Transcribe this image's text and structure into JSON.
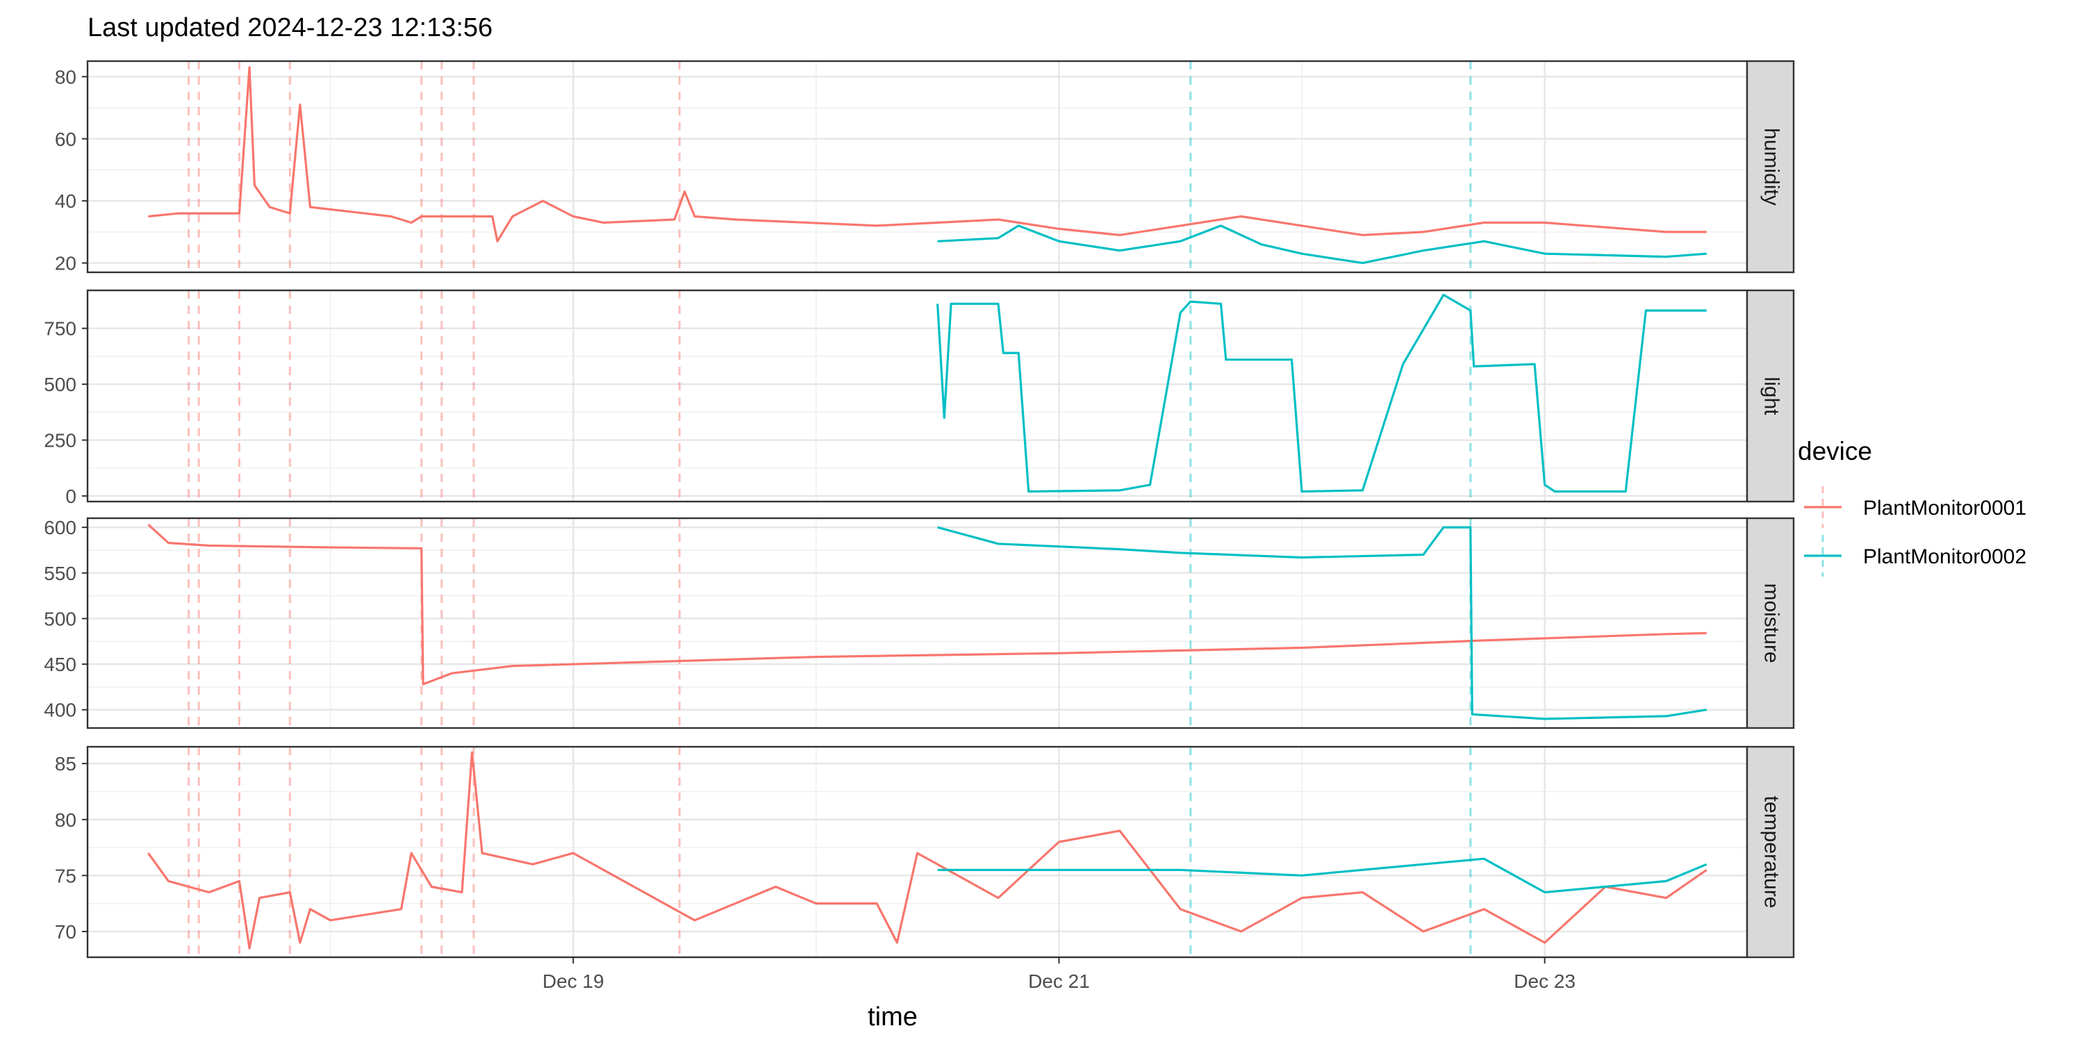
{
  "chart_data": {
    "type": "line",
    "title": "Last updated 2024-12-23 12:13:56",
    "xlabel": "time",
    "x_ticks": [
      "Dec 19",
      "Dec 21",
      "Dec 23"
    ],
    "x_range": [
      "2024-12-17 00:00",
      "2024-12-23 20:00"
    ],
    "legend": {
      "title": "device",
      "position": "right",
      "entries": [
        {
          "name": "PlantMonitor0001",
          "color": "#F8766D"
        },
        {
          "name": "PlantMonitor0002",
          "color": "#00BFC4"
        }
      ]
    },
    "vlines": [
      {
        "device": "PlantMonitor0001",
        "times": [
          "2024-12-17 10:00",
          "2024-12-17 11:00",
          "2024-12-17 15:00",
          "2024-12-17 20:00",
          "2024-12-18 09:00",
          "2024-12-18 11:00",
          "2024-12-18 14:10",
          "2024-12-19 10:30"
        ]
      },
      {
        "device": "PlantMonitor0002",
        "times": [
          "2024-12-21 13:00",
          "2024-12-22 16:40"
        ]
      }
    ],
    "panels": [
      {
        "name": "humidity",
        "ylim": [
          17,
          85
        ],
        "yticks": [
          20,
          40,
          60,
          80
        ],
        "series": [
          {
            "device": "PlantMonitor0001",
            "points": [
              [
                "2024-12-17 06:00",
                35
              ],
              [
                "2024-12-17 09:00",
                36
              ],
              [
                "2024-12-17 12:00",
                36
              ],
              [
                "2024-12-17 15:00",
                36
              ],
              [
                "2024-12-17 16:00",
                83
              ],
              [
                "2024-12-17 16:30",
                45
              ],
              [
                "2024-12-17 18:00",
                38
              ],
              [
                "2024-12-17 20:00",
                36
              ],
              [
                "2024-12-17 21:00",
                71
              ],
              [
                "2024-12-17 22:00",
                38
              ],
              [
                "2024-12-18 06:00",
                35
              ],
              [
                "2024-12-18 08:00",
                33
              ],
              [
                "2024-12-18 09:00",
                35
              ],
              [
                "2024-12-18 12:00",
                35
              ],
              [
                "2024-12-18 16:00",
                35
              ],
              [
                "2024-12-18 16:30",
                27
              ],
              [
                "2024-12-18 18:00",
                35
              ],
              [
                "2024-12-18 21:00",
                40
              ],
              [
                "2024-12-19 00:00",
                35
              ],
              [
                "2024-12-19 03:00",
                33
              ],
              [
                "2024-12-19 10:00",
                34
              ],
              [
                "2024-12-19 11:00",
                43
              ],
              [
                "2024-12-19 12:00",
                35
              ],
              [
                "2024-12-19 16:00",
                34
              ],
              [
                "2024-12-20 06:00",
                32
              ],
              [
                "2024-12-20 12:00",
                33
              ],
              [
                "2024-12-20 18:00",
                34
              ],
              [
                "2024-12-21 00:00",
                31
              ],
              [
                "2024-12-21 06:00",
                29
              ],
              [
                "2024-12-21 12:00",
                32
              ],
              [
                "2024-12-21 18:00",
                35
              ],
              [
                "2024-12-22 00:00",
                32
              ],
              [
                "2024-12-22 06:00",
                29
              ],
              [
                "2024-12-22 12:00",
                30
              ],
              [
                "2024-12-22 18:00",
                33
              ],
              [
                "2024-12-23 00:00",
                33
              ],
              [
                "2024-12-23 12:00",
                30
              ],
              [
                "2024-12-23 16:00",
                30
              ]
            ]
          },
          {
            "device": "PlantMonitor0002",
            "points": [
              [
                "2024-12-20 12:00",
                27
              ],
              [
                "2024-12-20 18:00",
                28
              ],
              [
                "2024-12-20 20:00",
                32
              ],
              [
                "2024-12-21 00:00",
                27
              ],
              [
                "2024-12-21 06:00",
                24
              ],
              [
                "2024-12-21 12:00",
                27
              ],
              [
                "2024-12-21 16:00",
                32
              ],
              [
                "2024-12-21 20:00",
                26
              ],
              [
                "2024-12-22 00:00",
                23
              ],
              [
                "2024-12-22 06:00",
                20
              ],
              [
                "2024-12-22 12:00",
                24
              ],
              [
                "2024-12-22 18:00",
                27
              ],
              [
                "2024-12-23 00:00",
                23
              ],
              [
                "2024-12-23 12:00",
                22
              ],
              [
                "2024-12-23 16:00",
                23
              ]
            ]
          }
        ]
      },
      {
        "name": "light",
        "ylim": [
          -25,
          920
        ],
        "yticks": [
          0,
          250,
          500,
          750
        ],
        "series": [
          {
            "device": "PlantMonitor0002",
            "points": [
              [
                "2024-12-20 12:00",
                860
              ],
              [
                "2024-12-20 12:40",
                350
              ],
              [
                "2024-12-20 13:20",
                860
              ],
              [
                "2024-12-20 18:00",
                860
              ],
              [
                "2024-12-20 18:30",
                640
              ],
              [
                "2024-12-20 20:00",
                640
              ],
              [
                "2024-12-20 21:00",
                20
              ],
              [
                "2024-12-21 06:00",
                25
              ],
              [
                "2024-12-21 09:00",
                50
              ],
              [
                "2024-12-21 12:00",
                820
              ],
              [
                "2024-12-21 13:00",
                870
              ],
              [
                "2024-12-21 16:00",
                860
              ],
              [
                "2024-12-21 16:30",
                610
              ],
              [
                "2024-12-21 23:00",
                610
              ],
              [
                "2024-12-22 00:00",
                20
              ],
              [
                "2024-12-22 06:00",
                25
              ],
              [
                "2024-12-22 10:00",
                590
              ],
              [
                "2024-12-22 14:00",
                900
              ],
              [
                "2024-12-22 16:40",
                830
              ],
              [
                "2024-12-22 17:00",
                580
              ],
              [
                "2024-12-22 23:00",
                590
              ],
              [
                "2024-12-23 00:00",
                50
              ],
              [
                "2024-12-23 01:00",
                20
              ],
              [
                "2024-12-23 08:00",
                20
              ],
              [
                "2024-12-23 10:00",
                830
              ],
              [
                "2024-12-23 16:00",
                830
              ]
            ]
          }
        ]
      },
      {
        "name": "moisture",
        "ylim": [
          380,
          610
        ],
        "yticks": [
          400,
          450,
          500,
          550,
          600
        ],
        "series": [
          {
            "device": "PlantMonitor0001",
            "points": [
              [
                "2024-12-17 06:00",
                603
              ],
              [
                "2024-12-17 08:00",
                583
              ],
              [
                "2024-12-17 12:00",
                580
              ],
              [
                "2024-12-18 00:00",
                578
              ],
              [
                "2024-12-18 09:00",
                577
              ],
              [
                "2024-12-18 09:10",
                428
              ],
              [
                "2024-12-18 12:00",
                440
              ],
              [
                "2024-12-18 18:00",
                448
              ],
              [
                "2024-12-19 06:00",
                452
              ],
              [
                "2024-12-20 00:00",
                458
              ],
              [
                "2024-12-21 00:00",
                462
              ],
              [
                "2024-12-22 00:00",
                468
              ],
              [
                "2024-12-22 18:00",
                476
              ],
              [
                "2024-12-23 12:00",
                483
              ],
              [
                "2024-12-23 16:00",
                484
              ]
            ]
          },
          {
            "device": "PlantMonitor0002",
            "points": [
              [
                "2024-12-20 12:00",
                600
              ],
              [
                "2024-12-20 18:00",
                582
              ],
              [
                "2024-12-21 06:00",
                576
              ],
              [
                "2024-12-21 12:00",
                572
              ],
              [
                "2024-12-22 00:00",
                567
              ],
              [
                "2024-12-22 12:00",
                570
              ],
              [
                "2024-12-22 14:00",
                600
              ],
              [
                "2024-12-22 16:40",
                600
              ],
              [
                "2024-12-22 16:50",
                395
              ],
              [
                "2024-12-23 00:00",
                390
              ],
              [
                "2024-12-23 12:00",
                393
              ],
              [
                "2024-12-23 16:00",
                400
              ]
            ]
          }
        ]
      },
      {
        "name": "temperature",
        "ylim": [
          67.7,
          86.5
        ],
        "yticks": [
          70,
          75,
          80,
          85
        ],
        "series": [
          {
            "device": "PlantMonitor0001",
            "points": [
              [
                "2024-12-17 06:00",
                77
              ],
              [
                "2024-12-17 08:00",
                74.5
              ],
              [
                "2024-12-17 12:00",
                73.5
              ],
              [
                "2024-12-17 15:00",
                74.5
              ],
              [
                "2024-12-17 16:00",
                68.5
              ],
              [
                "2024-12-17 17:00",
                73
              ],
              [
                "2024-12-17 20:00",
                73.5
              ],
              [
                "2024-12-17 21:00",
                69
              ],
              [
                "2024-12-17 22:00",
                72
              ],
              [
                "2024-12-18 00:00",
                71
              ],
              [
                "2024-12-18 07:00",
                72
              ],
              [
                "2024-12-18 08:00",
                77
              ],
              [
                "2024-12-18 10:00",
                74
              ],
              [
                "2024-12-18 13:00",
                73.5
              ],
              [
                "2024-12-18 14:00",
                86
              ],
              [
                "2024-12-18 15:00",
                77
              ],
              [
                "2024-12-18 20:00",
                76
              ],
              [
                "2024-12-19 00:00",
                77
              ],
              [
                "2024-12-19 06:00",
                74
              ],
              [
                "2024-12-19 12:00",
                71
              ],
              [
                "2024-12-19 20:00",
                74
              ],
              [
                "2024-12-20 00:00",
                72.5
              ],
              [
                "2024-12-20 06:00",
                72.5
              ],
              [
                "2024-12-20 08:00",
                69
              ],
              [
                "2024-12-20 10:00",
                77
              ],
              [
                "2024-12-20 18:00",
                73
              ],
              [
                "2024-12-21 00:00",
                78
              ],
              [
                "2024-12-21 06:00",
                79
              ],
              [
                "2024-12-21 12:00",
                72
              ],
              [
                "2024-12-21 18:00",
                70
              ],
              [
                "2024-12-22 00:00",
                73
              ],
              [
                "2024-12-22 06:00",
                73.5
              ],
              [
                "2024-12-22 12:00",
                70
              ],
              [
                "2024-12-22 18:00",
                72
              ],
              [
                "2024-12-23 00:00",
                69
              ],
              [
                "2024-12-23 06:00",
                74
              ],
              [
                "2024-12-23 12:00",
                73
              ],
              [
                "2024-12-23 16:00",
                75.5
              ]
            ]
          },
          {
            "device": "PlantMonitor0002",
            "points": [
              [
                "2024-12-20 12:00",
                75.5
              ],
              [
                "2024-12-21 00:00",
                75.5
              ],
              [
                "2024-12-21 12:00",
                75.5
              ],
              [
                "2024-12-22 00:00",
                75
              ],
              [
                "2024-12-22 12:00",
                76
              ],
              [
                "2024-12-22 18:00",
                76.5
              ],
              [
                "2024-12-23 00:00",
                73.5
              ],
              [
                "2024-12-23 12:00",
                74.5
              ],
              [
                "2024-12-23 16:00",
                76
              ]
            ]
          }
        ]
      }
    ]
  }
}
